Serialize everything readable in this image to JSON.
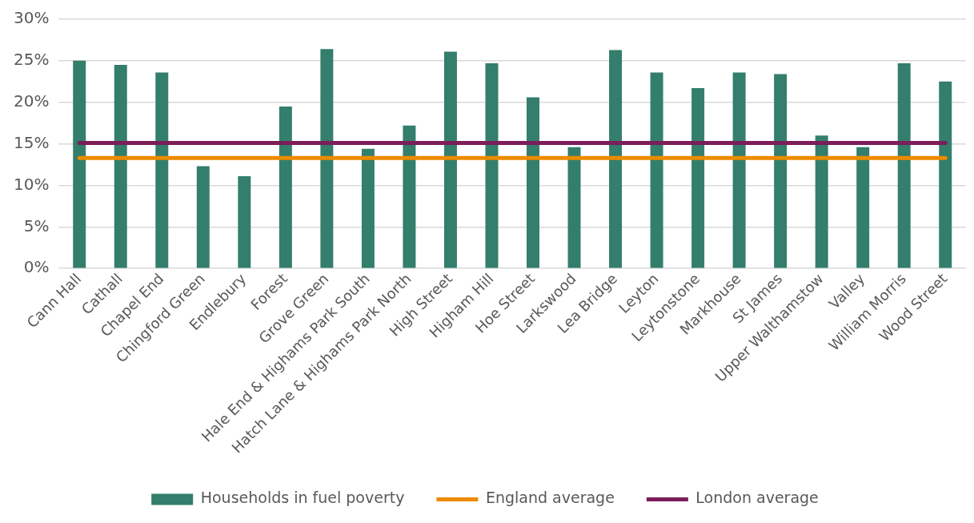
{
  "chart_data": {
    "type": "bar",
    "categories": [
      "Cann Hall",
      "Cathall",
      "Chapel End",
      "Chingford Green",
      "Endlebury",
      "Forest",
      "Grove Green",
      "Hale End & Highams Park South",
      "Hatch Lane & Highams Park North",
      "High Street",
      "Higham Hill",
      "Hoe Street",
      "Larkswood",
      "Lea Bridge",
      "Leyton",
      "Leytonstone",
      "Markhouse",
      "St James",
      "Upper Walthamstow",
      "Valley",
      "William Morris",
      "Wood Street"
    ],
    "series": [
      {
        "name": "Households in fuel poverty",
        "color": "#337e6c",
        "values": [
          25.0,
          24.5,
          23.6,
          12.3,
          11.1,
          19.5,
          26.4,
          14.4,
          17.2,
          26.1,
          24.7,
          20.6,
          14.6,
          26.3,
          23.6,
          21.7,
          23.6,
          23.4,
          16.0,
          14.6,
          24.7,
          22.5
        ]
      },
      {
        "name": "England average",
        "type": "line",
        "color": "#ed8b00",
        "values": [
          13.3,
          13.3,
          13.3,
          13.3,
          13.3,
          13.3,
          13.3,
          13.3,
          13.3,
          13.3,
          13.3,
          13.3,
          13.3,
          13.3,
          13.3,
          13.3,
          13.3,
          13.3,
          13.3,
          13.3,
          13.3,
          13.3
        ]
      },
      {
        "name": "London average",
        "type": "line",
        "color": "#7b1e5a",
        "values": [
          15.1,
          15.1,
          15.1,
          15.1,
          15.1,
          15.1,
          15.1,
          15.1,
          15.1,
          15.1,
          15.1,
          15.1,
          15.1,
          15.1,
          15.1,
          15.1,
          15.1,
          15.1,
          15.1,
          15.1,
          15.1,
          15.1
        ]
      }
    ],
    "ylim": [
      0,
      30
    ],
    "yticks": [
      {
        "value": 0,
        "label": "0%"
      },
      {
        "value": 5,
        "label": "5%"
      },
      {
        "value": 10,
        "label": "10%"
      },
      {
        "value": 15,
        "label": "15%"
      },
      {
        "value": 20,
        "label": "20%"
      },
      {
        "value": 25,
        "label": "25%"
      },
      {
        "value": 30,
        "label": "30%"
      }
    ],
    "grid": "y",
    "legend": "bottom",
    "marker": "none"
  }
}
